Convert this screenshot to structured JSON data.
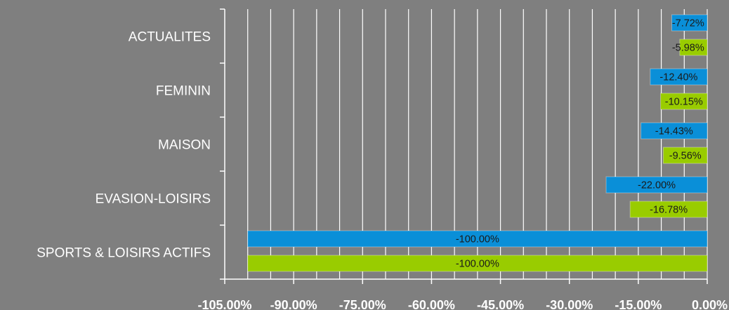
{
  "chart_data": {
    "type": "bar",
    "orientation": "horizontal",
    "categories": [
      "ACTUALITES",
      "FEMININ",
      "MAISON",
      "EVASION-LOISIRS",
      "SPORTS & LOISIRS ACTIFS"
    ],
    "series": [
      {
        "color": "#0a8fd8",
        "values": [
          -7.72,
          -12.4,
          -14.43,
          -22.0,
          -100.0
        ],
        "labels": [
          "-7.72%",
          "-12.40%",
          "-14.43%",
          "-22.00%",
          "-100.00%"
        ]
      },
      {
        "color": "#99cc00",
        "values": [
          -5.98,
          -10.15,
          -9.56,
          -16.78,
          -100.0
        ],
        "labels": [
          "-5.98%",
          "-10.15%",
          "-9.56%",
          "-16.78%",
          "-100.00%"
        ]
      }
    ],
    "xlim": [
      -105,
      0
    ],
    "x_ticks": [
      -105,
      -90,
      -75,
      -60,
      -45,
      -30,
      -15,
      0
    ],
    "x_tick_labels": [
      "-105.00%",
      "-90.00%",
      "-75.00%",
      "-60.00%",
      "-45.00%",
      "-30.00%",
      "-15.00%",
      "0.00%"
    ],
    "grid": "vertical",
    "legend": "none",
    "title": "",
    "xlabel": "",
    "ylabel": ""
  }
}
